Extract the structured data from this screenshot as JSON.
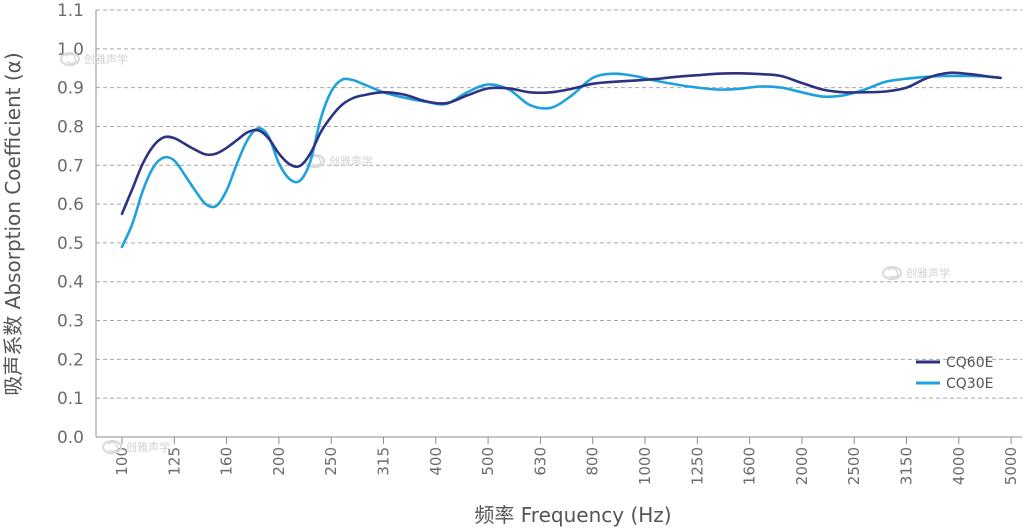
{
  "chart_data": {
    "type": "line",
    "xlabel": "频率 Frequency (Hz)",
    "ylabel": "吸声系数 Absorption Coefficient (α)",
    "ylim": [
      0,
      1.1
    ],
    "y_ticks": [
      "0.0",
      "0.1",
      "0.2",
      "0.3",
      "0.4",
      "0.5",
      "0.6",
      "0.7",
      "0.8",
      "0.9",
      "1.0",
      "1.1"
    ],
    "categories": [
      "100",
      "125",
      "160",
      "200",
      "250",
      "315",
      "400",
      "500",
      "630",
      "800",
      "1000",
      "1250",
      "1600",
      "2000",
      "2500",
      "3150",
      "4000",
      "5000"
    ],
    "grid": true,
    "legend_position": "bottom-right",
    "series": [
      {
        "name": "CQ60E",
        "color": "#2e3283",
        "points": [
          [
            0,
            0.575
          ],
          [
            0.2,
            0.64
          ],
          [
            0.4,
            0.705
          ],
          [
            0.6,
            0.75
          ],
          [
            0.8,
            0.772
          ],
          [
            1.0,
            0.77
          ],
          [
            1.2,
            0.755
          ],
          [
            1.4,
            0.74
          ],
          [
            1.6,
            0.728
          ],
          [
            1.8,
            0.73
          ],
          [
            2.0,
            0.745
          ],
          [
            2.2,
            0.765
          ],
          [
            2.4,
            0.785
          ],
          [
            2.6,
            0.79
          ],
          [
            2.8,
            0.77
          ],
          [
            3.0,
            0.73
          ],
          [
            3.2,
            0.703
          ],
          [
            3.4,
            0.698
          ],
          [
            3.6,
            0.73
          ],
          [
            3.8,
            0.785
          ],
          [
            4.0,
            0.825
          ],
          [
            4.2,
            0.855
          ],
          [
            4.4,
            0.872
          ],
          [
            4.6,
            0.88
          ],
          [
            5.0,
            0.888
          ],
          [
            5.4,
            0.882
          ],
          [
            5.8,
            0.865
          ],
          [
            6.2,
            0.86
          ],
          [
            6.6,
            0.88
          ],
          [
            7.0,
            0.898
          ],
          [
            7.4,
            0.898
          ],
          [
            7.8,
            0.888
          ],
          [
            8.2,
            0.888
          ],
          [
            8.6,
            0.897
          ],
          [
            9.0,
            0.91
          ],
          [
            9.4,
            0.915
          ],
          [
            9.8,
            0.918
          ],
          [
            10.2,
            0.922
          ],
          [
            10.6,
            0.928
          ],
          [
            11.0,
            0.932
          ],
          [
            11.4,
            0.936
          ],
          [
            11.8,
            0.937
          ],
          [
            12.2,
            0.935
          ],
          [
            12.6,
            0.93
          ],
          [
            13.0,
            0.912
          ],
          [
            13.4,
            0.895
          ],
          [
            13.8,
            0.888
          ],
          [
            14.2,
            0.888
          ],
          [
            14.6,
            0.89
          ],
          [
            15.0,
            0.9
          ],
          [
            15.4,
            0.925
          ],
          [
            15.8,
            0.938
          ],
          [
            16.2,
            0.935
          ],
          [
            16.6,
            0.928
          ],
          [
            16.8,
            0.925
          ]
        ]
      },
      {
        "name": "CQ30E",
        "color": "#1ea2dc",
        "points": [
          [
            0,
            0.49
          ],
          [
            0.2,
            0.55
          ],
          [
            0.4,
            0.635
          ],
          [
            0.6,
            0.695
          ],
          [
            0.8,
            0.72
          ],
          [
            1.0,
            0.712
          ],
          [
            1.2,
            0.675
          ],
          [
            1.4,
            0.635
          ],
          [
            1.6,
            0.6
          ],
          [
            1.8,
            0.595
          ],
          [
            2.0,
            0.635
          ],
          [
            2.2,
            0.705
          ],
          [
            2.4,
            0.765
          ],
          [
            2.6,
            0.795
          ],
          [
            2.8,
            0.775
          ],
          [
            3.0,
            0.705
          ],
          [
            3.2,
            0.665
          ],
          [
            3.4,
            0.66
          ],
          [
            3.6,
            0.71
          ],
          [
            3.8,
            0.82
          ],
          [
            4.0,
            0.89
          ],
          [
            4.2,
            0.92
          ],
          [
            4.4,
            0.92
          ],
          [
            4.6,
            0.91
          ],
          [
            5.0,
            0.888
          ],
          [
            5.4,
            0.874
          ],
          [
            5.8,
            0.864
          ],
          [
            6.2,
            0.858
          ],
          [
            6.6,
            0.888
          ],
          [
            7.0,
            0.908
          ],
          [
            7.4,
            0.895
          ],
          [
            7.8,
            0.855
          ],
          [
            8.2,
            0.848
          ],
          [
            8.6,
            0.88
          ],
          [
            9.0,
            0.925
          ],
          [
            9.4,
            0.936
          ],
          [
            9.8,
            0.93
          ],
          [
            10.2,
            0.918
          ],
          [
            10.6,
            0.908
          ],
          [
            11.0,
            0.9
          ],
          [
            11.4,
            0.895
          ],
          [
            11.8,
            0.897
          ],
          [
            12.2,
            0.903
          ],
          [
            12.6,
            0.9
          ],
          [
            13.0,
            0.888
          ],
          [
            13.4,
            0.877
          ],
          [
            13.8,
            0.88
          ],
          [
            14.2,
            0.895
          ],
          [
            14.6,
            0.915
          ],
          [
            15.0,
            0.923
          ],
          [
            15.4,
            0.928
          ],
          [
            15.8,
            0.93
          ],
          [
            16.2,
            0.93
          ],
          [
            16.6,
            0.928
          ],
          [
            16.8,
            0.925
          ]
        ]
      }
    ]
  },
  "watermark": {
    "text": "创雅声学",
    "icon": "swirl-logo-icon"
  }
}
